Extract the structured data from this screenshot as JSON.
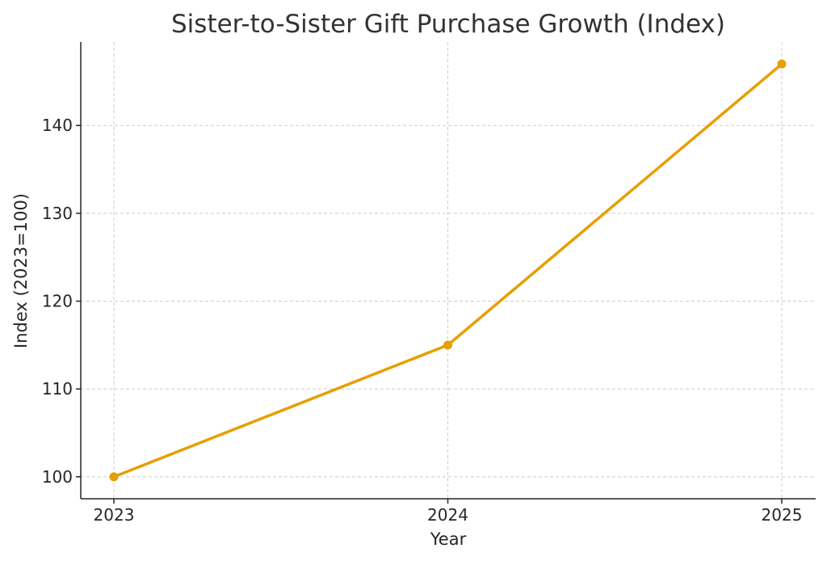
{
  "chart_data": {
    "type": "line",
    "title": "Sister-to-Sister Gift Purchase Growth (Index)",
    "xlabel": "Year",
    "ylabel": "Index (2023=100)",
    "categories": [
      "2023",
      "2024",
      "2025"
    ],
    "series": [
      {
        "values": [
          100,
          115,
          147
        ],
        "color": "#E69F00"
      }
    ],
    "yticks": [
      100,
      110,
      120,
      130,
      140
    ],
    "ylim": [
      97.5,
      149.5
    ],
    "grid": true,
    "legend": "none"
  }
}
